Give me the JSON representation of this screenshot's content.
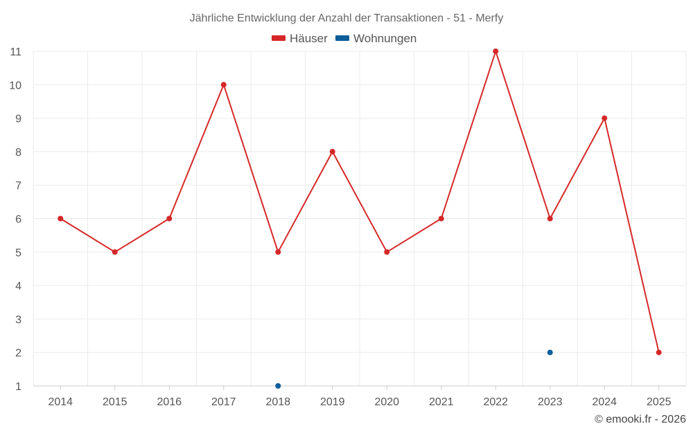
{
  "chart_data": {
    "type": "line",
    "title": "Jährliche Entwicklung der Anzahl der Transaktionen - 51 - Merfy",
    "categories": [
      "2014",
      "2015",
      "2016",
      "2017",
      "2018",
      "2019",
      "2020",
      "2021",
      "2022",
      "2023",
      "2024",
      "2025"
    ],
    "series": [
      {
        "name": "Häuser",
        "color": "#d62728",
        "values": [
          6,
          5,
          6,
          10,
          5,
          8,
          5,
          6,
          11,
          6,
          9,
          2
        ]
      },
      {
        "name": "Wohnungen",
        "color": "#0b5e99",
        "values": [
          null,
          null,
          null,
          null,
          1,
          null,
          null,
          null,
          null,
          2,
          null,
          null
        ]
      }
    ],
    "ylim": [
      1,
      11
    ],
    "yticks": [
      1,
      2,
      3,
      4,
      5,
      6,
      7,
      8,
      9,
      10,
      11
    ],
    "grid": true,
    "legend_position": "top-center"
  },
  "credit": "© emooki.fr - 2026"
}
